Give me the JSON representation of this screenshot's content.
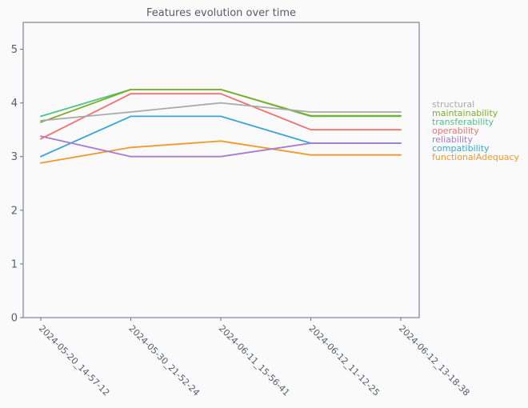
{
  "chart_data": {
    "type": "line",
    "title": "Features evolution over time",
    "xlabel": "",
    "ylabel": "",
    "ylim": [
      0,
      5.5
    ],
    "yticks": [
      0,
      1,
      2,
      3,
      4,
      5
    ],
    "grid": false,
    "legend_placement": "right",
    "categories": [
      "2024-05-20_14-57-12",
      "2024-05-30_21-52-24",
      "2024-06-11_15-56-41",
      "2024-06-12_11-12-25",
      "2024-06-12_13-18-38"
    ],
    "series": [
      {
        "name": "structural",
        "color": "#aaaaaa",
        "values": [
          3.67,
          3.83,
          4.0,
          3.83,
          3.83
        ]
      },
      {
        "name": "maintainability",
        "color": "#7fad1f",
        "values": [
          3.64,
          4.25,
          4.25,
          3.76,
          3.76
        ]
      },
      {
        "name": "transferability",
        "color": "#4cc38a",
        "values": [
          3.75,
          4.25,
          4.25,
          3.75,
          3.75
        ]
      },
      {
        "name": "operability",
        "color": "#ee7272",
        "values": [
          3.33,
          4.17,
          4.17,
          3.5,
          3.5
        ]
      },
      {
        "name": "reliability",
        "color": "#a77bd1",
        "values": [
          3.38,
          3.0,
          3.0,
          3.25,
          3.25
        ]
      },
      {
        "name": "compatibility",
        "color": "#36a6d6",
        "values": [
          3.0,
          3.75,
          3.75,
          3.25,
          3.25
        ]
      },
      {
        "name": "functionalAdequacy",
        "color": "#f09a2a",
        "values": [
          2.88,
          3.17,
          3.29,
          3.03,
          3.03
        ]
      }
    ]
  }
}
